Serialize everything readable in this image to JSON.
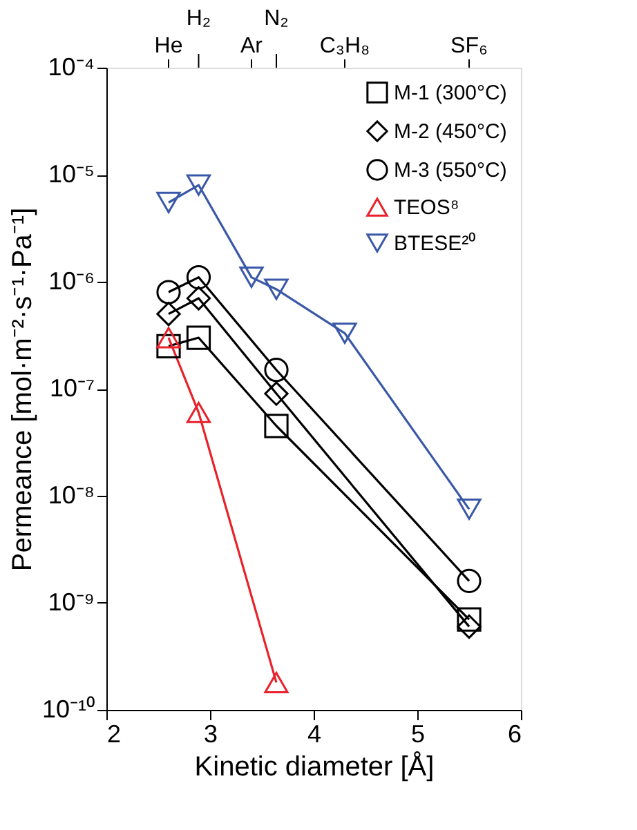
{
  "chart_data": {
    "type": "line",
    "xlabel": "Kinetic diameter [Å]",
    "ylabel": "Permeance [mol·m⁻²·s⁻¹·Pa⁻¹]",
    "xlim": [
      2,
      6
    ],
    "xticks": [
      {
        "value": 2,
        "label": "2"
      },
      {
        "value": 3,
        "label": "3"
      },
      {
        "value": 4,
        "label": "4"
      },
      {
        "value": 5,
        "label": "5"
      },
      {
        "value": 6,
        "label": "6"
      }
    ],
    "annotations": [
      {
        "text": "He",
        "x": 2.6
      },
      {
        "text": "H₂",
        "x": 2.89
      },
      {
        "text": "Ar",
        "x": 3.4
      },
      {
        "text": "N₂",
        "x": 3.64
      },
      {
        "text": "C₃H₈",
        "x": 4.3
      },
      {
        "text": "SF₆",
        "x": 5.5
      }
    ],
    "ylim": [
      1e-10,
      0.0001
    ],
    "log": "y",
    "yticks": [
      {
        "value": 1e-10,
        "label": "10⁻¹⁰"
      },
      {
        "value": 1e-09,
        "label": "10⁻⁹"
      },
      {
        "value": 1e-08,
        "label": "10⁻⁸"
      },
      {
        "value": 1e-07,
        "label": "10⁻⁷"
      },
      {
        "value": 1e-06,
        "label": "10⁻⁶"
      },
      {
        "value": 1e-05,
        "label": "10⁻⁵"
      },
      {
        "value": 0.0001,
        "label": "10⁻⁴"
      }
    ],
    "legend": "top right",
    "grid": false,
    "line_style": "solid",
    "series": [
      {
        "name": "M-1 (300°C)",
        "color": "#000000",
        "marker": "square",
        "x": [
          2.6,
          2.89,
          3.64,
          5.5
        ],
        "values": [
          2.5e-07,
          3e-07,
          4.5e-08,
          7e-10
        ]
      },
      {
        "name": "M-2 (450°C)",
        "color": "#000000",
        "marker": "diamond",
        "x": [
          2.6,
          2.89,
          3.64,
          5.5
        ],
        "values": [
          5e-07,
          7e-07,
          9e-08,
          6e-10
        ]
      },
      {
        "name": "M-3 (550°C)",
        "color": "#000000",
        "marker": "circle",
        "x": [
          2.6,
          2.89,
          3.64,
          5.5
        ],
        "values": [
          8e-07,
          1.1e-06,
          1.5e-07,
          1.6e-09
        ]
      },
      {
        "name": "TEOS⁸",
        "color": "#e8212a",
        "marker": "triangle",
        "x": [
          2.6,
          2.89,
          3.64
        ],
        "values": [
          3e-07,
          6e-08,
          1.8e-10
        ]
      },
      {
        "name": "BTESE²⁰",
        "color": "#3a58a8",
        "marker": "triangle-down",
        "x": [
          2.6,
          2.89,
          3.4,
          3.64,
          4.3,
          5.5
        ],
        "values": [
          5.5e-06,
          8e-06,
          1.1e-06,
          8.5e-07,
          3.3e-07,
          7.5e-09
        ]
      }
    ]
  }
}
